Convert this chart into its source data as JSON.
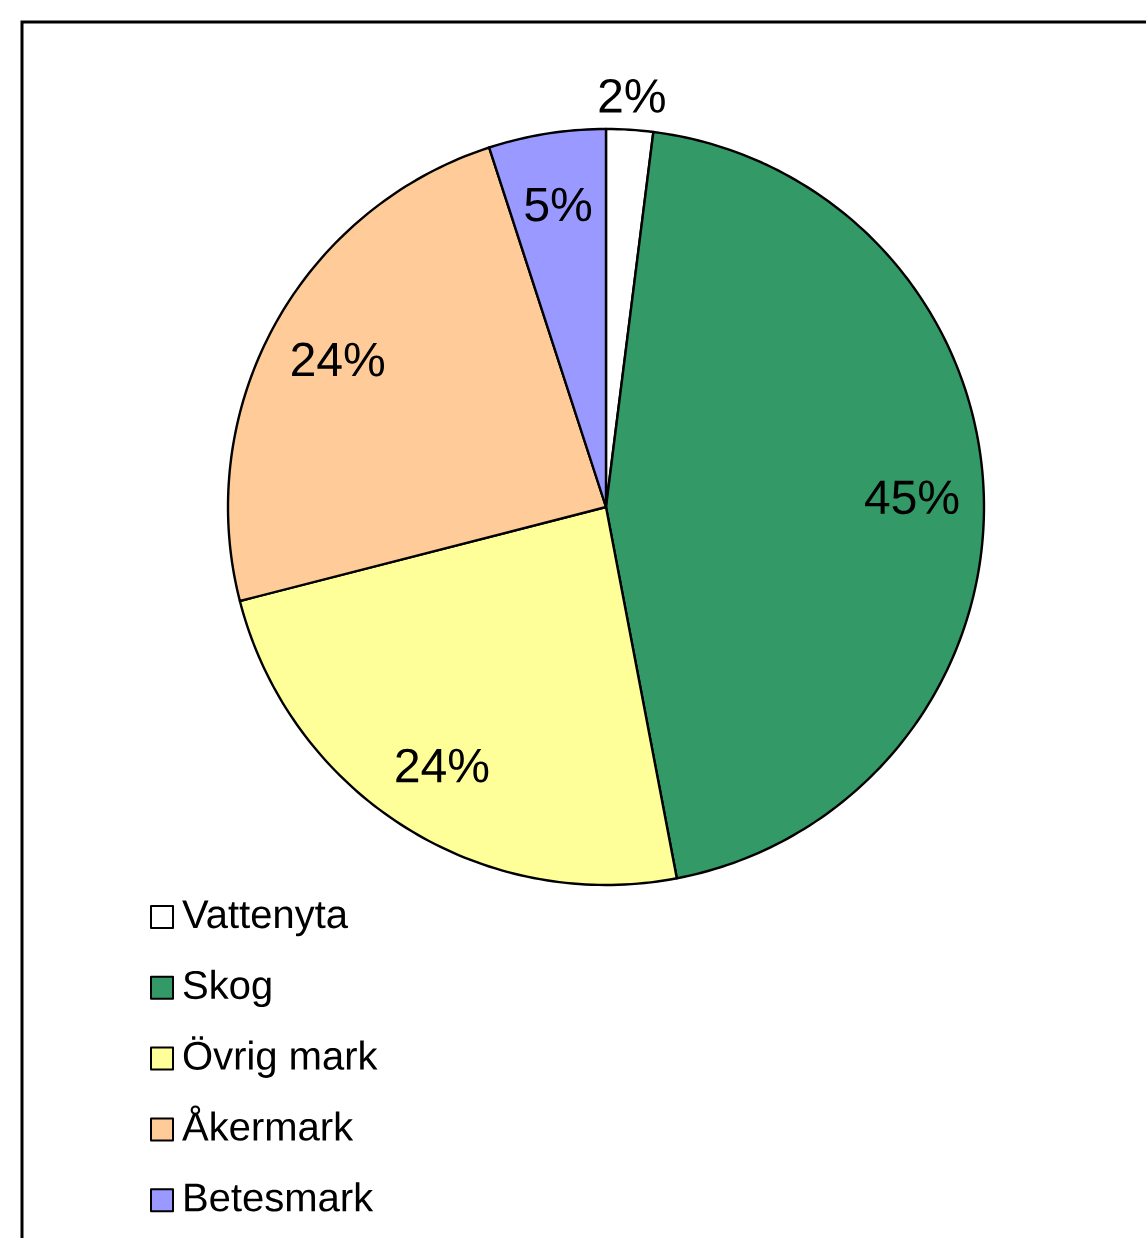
{
  "chart_data": {
    "type": "pie",
    "categories": [
      "Vattenyta",
      "Skog",
      "Övrig mark",
      "Åkermark",
      "Betesmark"
    ],
    "values": [
      2,
      45,
      24,
      24,
      5
    ],
    "colors": [
      "#ffffff",
      "#339966",
      "#ffff99",
      "#ffcc99",
      "#9999ff"
    ],
    "value_labels": [
      "2%",
      "45%",
      "24%",
      "24%",
      "5%"
    ],
    "legend": "bottom left"
  }
}
